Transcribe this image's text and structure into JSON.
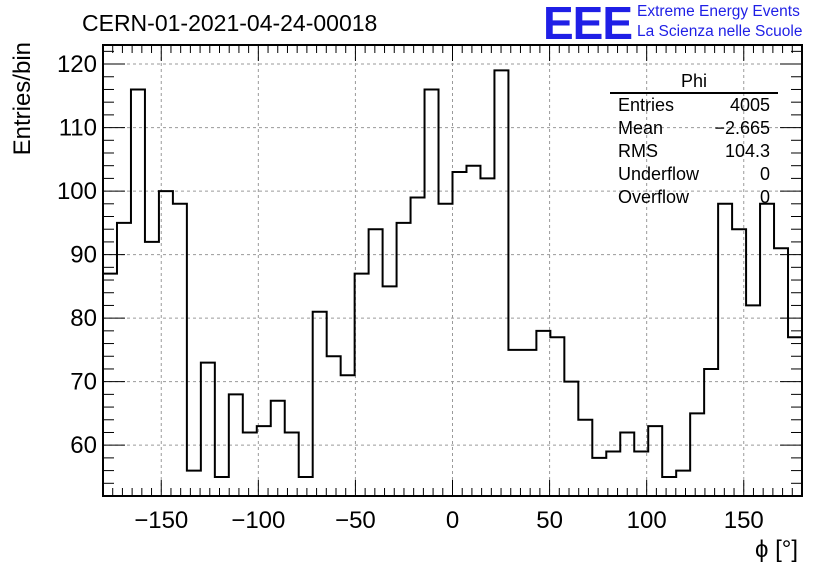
{
  "title": "CERN-01-2021-04-24-00018",
  "logo": {
    "mark": "EEE",
    "line1": "Extreme Energy Events",
    "line2": "La Scienza nelle Scuole",
    "color": "#1f1fe6"
  },
  "stats": {
    "name": "Phi",
    "rows": [
      {
        "label": "Entries",
        "value": "4005"
      },
      {
        "label": "Mean",
        "value": "−2.665"
      },
      {
        "label": "RMS",
        "value": "104.3"
      },
      {
        "label": "Underflow",
        "value": "0"
      },
      {
        "label": "Overflow",
        "value": "0"
      }
    ]
  },
  "chart_data": {
    "type": "histogram",
    "xlabel": "ϕ [°]",
    "ylabel": "Entries/bin",
    "xlim": [
      -180,
      180
    ],
    "ylim": [
      52,
      123
    ],
    "bin_width": 7.2,
    "bin_edges_start": -180,
    "xticks": [
      -150,
      -100,
      -50,
      0,
      50,
      100,
      150
    ],
    "xtick_labels": [
      "−150",
      "−100",
      "−50",
      "0",
      "50",
      "100",
      "150"
    ],
    "yticks": [
      60,
      70,
      80,
      90,
      100,
      110,
      120
    ],
    "ytick_labels": [
      "60",
      "70",
      "80",
      "90",
      "100",
      "110",
      "120"
    ],
    "grid": true,
    "values": [
      87,
      95,
      116,
      92,
      100,
      98,
      56,
      73,
      55,
      68,
      62,
      63,
      67,
      62,
      55,
      81,
      74,
      71,
      87,
      94,
      85,
      95,
      99,
      116,
      98,
      103,
      104,
      102,
      119,
      75,
      75,
      78,
      77,
      70,
      64,
      58,
      59,
      62,
      59,
      63,
      55,
      56,
      65,
      72,
      98,
      94,
      82,
      98,
      91,
      77
    ]
  }
}
